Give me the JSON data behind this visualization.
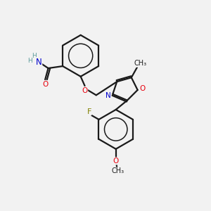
{
  "bg_color": "#f2f2f2",
  "bond_color": "#1a1a1a",
  "bond_width": 1.6,
  "atom_colors": {
    "O": "#e8000d",
    "N": "#0000cc",
    "F": "#808000",
    "C": "#1a1a1a",
    "H": "#5a9a9a"
  },
  "font_size_atom": 8.5,
  "font_size_small": 7.0,
  "font_size_methyl": 7.0
}
